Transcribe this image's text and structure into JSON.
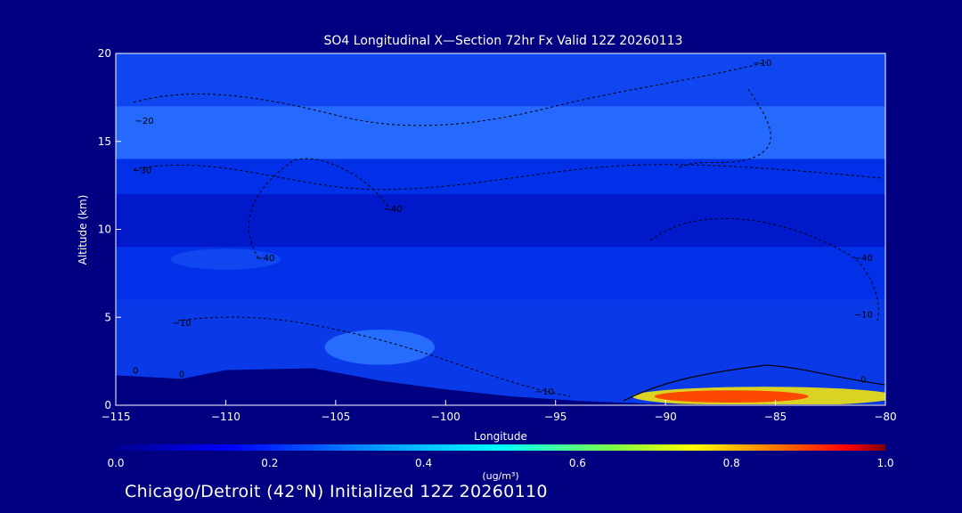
{
  "chart_data": {
    "type": "heatmap",
    "title": "SO4 Longitudinal X—Section 72hr  Fx Valid 12Z 20260113",
    "xlabel": "Longitude",
    "ylabel": "Altitude (km)",
    "xlim": [
      -115,
      -80
    ],
    "ylim": [
      0,
      20
    ],
    "x_ticks": [
      -115,
      -110,
      -105,
      -100,
      -95,
      -90,
      -85,
      -80
    ],
    "x_tick_labels": [
      "−115",
      "−110",
      "−105",
      "−100",
      "−95",
      "−90",
      "−85",
      "−80"
    ],
    "y_ticks": [
      0,
      5,
      10,
      15,
      20
    ],
    "y_tick_labels": [
      "0",
      "5",
      "10",
      "15",
      "20"
    ],
    "colorbar": {
      "label": "(ug/m³)",
      "min": 0.0,
      "max": 1.0,
      "ticks": [
        0.0,
        0.2,
        0.4,
        0.6,
        0.8,
        1.0
      ],
      "tick_labels": [
        "0.0",
        "0.2",
        "0.4",
        "0.6",
        "0.8",
        "1.0"
      ]
    },
    "bands": [
      {
        "name": "band-top",
        "y_top": 20,
        "y_bottom": 17,
        "value": 0.15
      },
      {
        "name": "band-upper-light",
        "y_top": 17,
        "y_bottom": 14,
        "value": 0.2
      },
      {
        "name": "band-upper-mid",
        "y_top": 14,
        "y_bottom": 12,
        "value": 0.1
      },
      {
        "name": "band-mid-dark",
        "y_top": 12,
        "y_bottom": 9,
        "value": 0.06
      },
      {
        "name": "band-mid",
        "y_top": 9,
        "y_bottom": 6,
        "value": 0.1
      },
      {
        "name": "band-low",
        "y_top": 6,
        "y_bottom": 2,
        "value": 0.13
      }
    ],
    "blobs": [
      {
        "name": "blob-low-west",
        "x": -103,
        "y": 3.3,
        "rx": 2.5,
        "ry": 1.0,
        "value": 0.22
      },
      {
        "name": "blob-mid-west",
        "x": -110,
        "y": 8.3,
        "rx": 2.5,
        "ry": 0.6,
        "value": 0.16
      },
      {
        "name": "blob-surface-east",
        "x": -87,
        "y": 0.5,
        "rx": 3.5,
        "ry": 0.35,
        "value": 0.85
      }
    ],
    "terrain": [
      [
        -115,
        1.7
      ],
      [
        -112,
        1.5
      ],
      [
        -110,
        2.0
      ],
      [
        -106,
        2.1
      ],
      [
        -103,
        1.4
      ],
      [
        -100,
        0.9
      ],
      [
        -97,
        0.5
      ],
      [
        -94,
        0.25
      ],
      [
        -91,
        0.1
      ],
      [
        -88,
        0.05
      ],
      [
        -80,
        0.05
      ]
    ],
    "contours": [
      {
        "label": "−10",
        "x": -85.6,
        "y": 19.3
      },
      {
        "label": "−20",
        "x": -113.7,
        "y": 16.0
      },
      {
        "label": "−30",
        "x": -113.8,
        "y": 13.2
      },
      {
        "label": "−40",
        "x": -102.4,
        "y": 11.0
      },
      {
        "label": "−40",
        "x": -108.2,
        "y": 8.2
      },
      {
        "label": "−40",
        "x": -81.0,
        "y": 8.2
      },
      {
        "label": "−10",
        "x": -112.0,
        "y": 4.5
      },
      {
        "label": "−10",
        "x": -81.0,
        "y": 5.0
      },
      {
        "label": "−10",
        "x": -95.5,
        "y": 0.6
      },
      {
        "label": "0",
        "x": -114.1,
        "y": 1.8
      },
      {
        "label": "0",
        "x": -112.0,
        "y": 1.6
      },
      {
        "label": "0",
        "x": -81.0,
        "y": 1.3
      }
    ]
  },
  "footer": {
    "text": "Chicago/Detroit (42°N) Initialized 12Z 20260110"
  }
}
